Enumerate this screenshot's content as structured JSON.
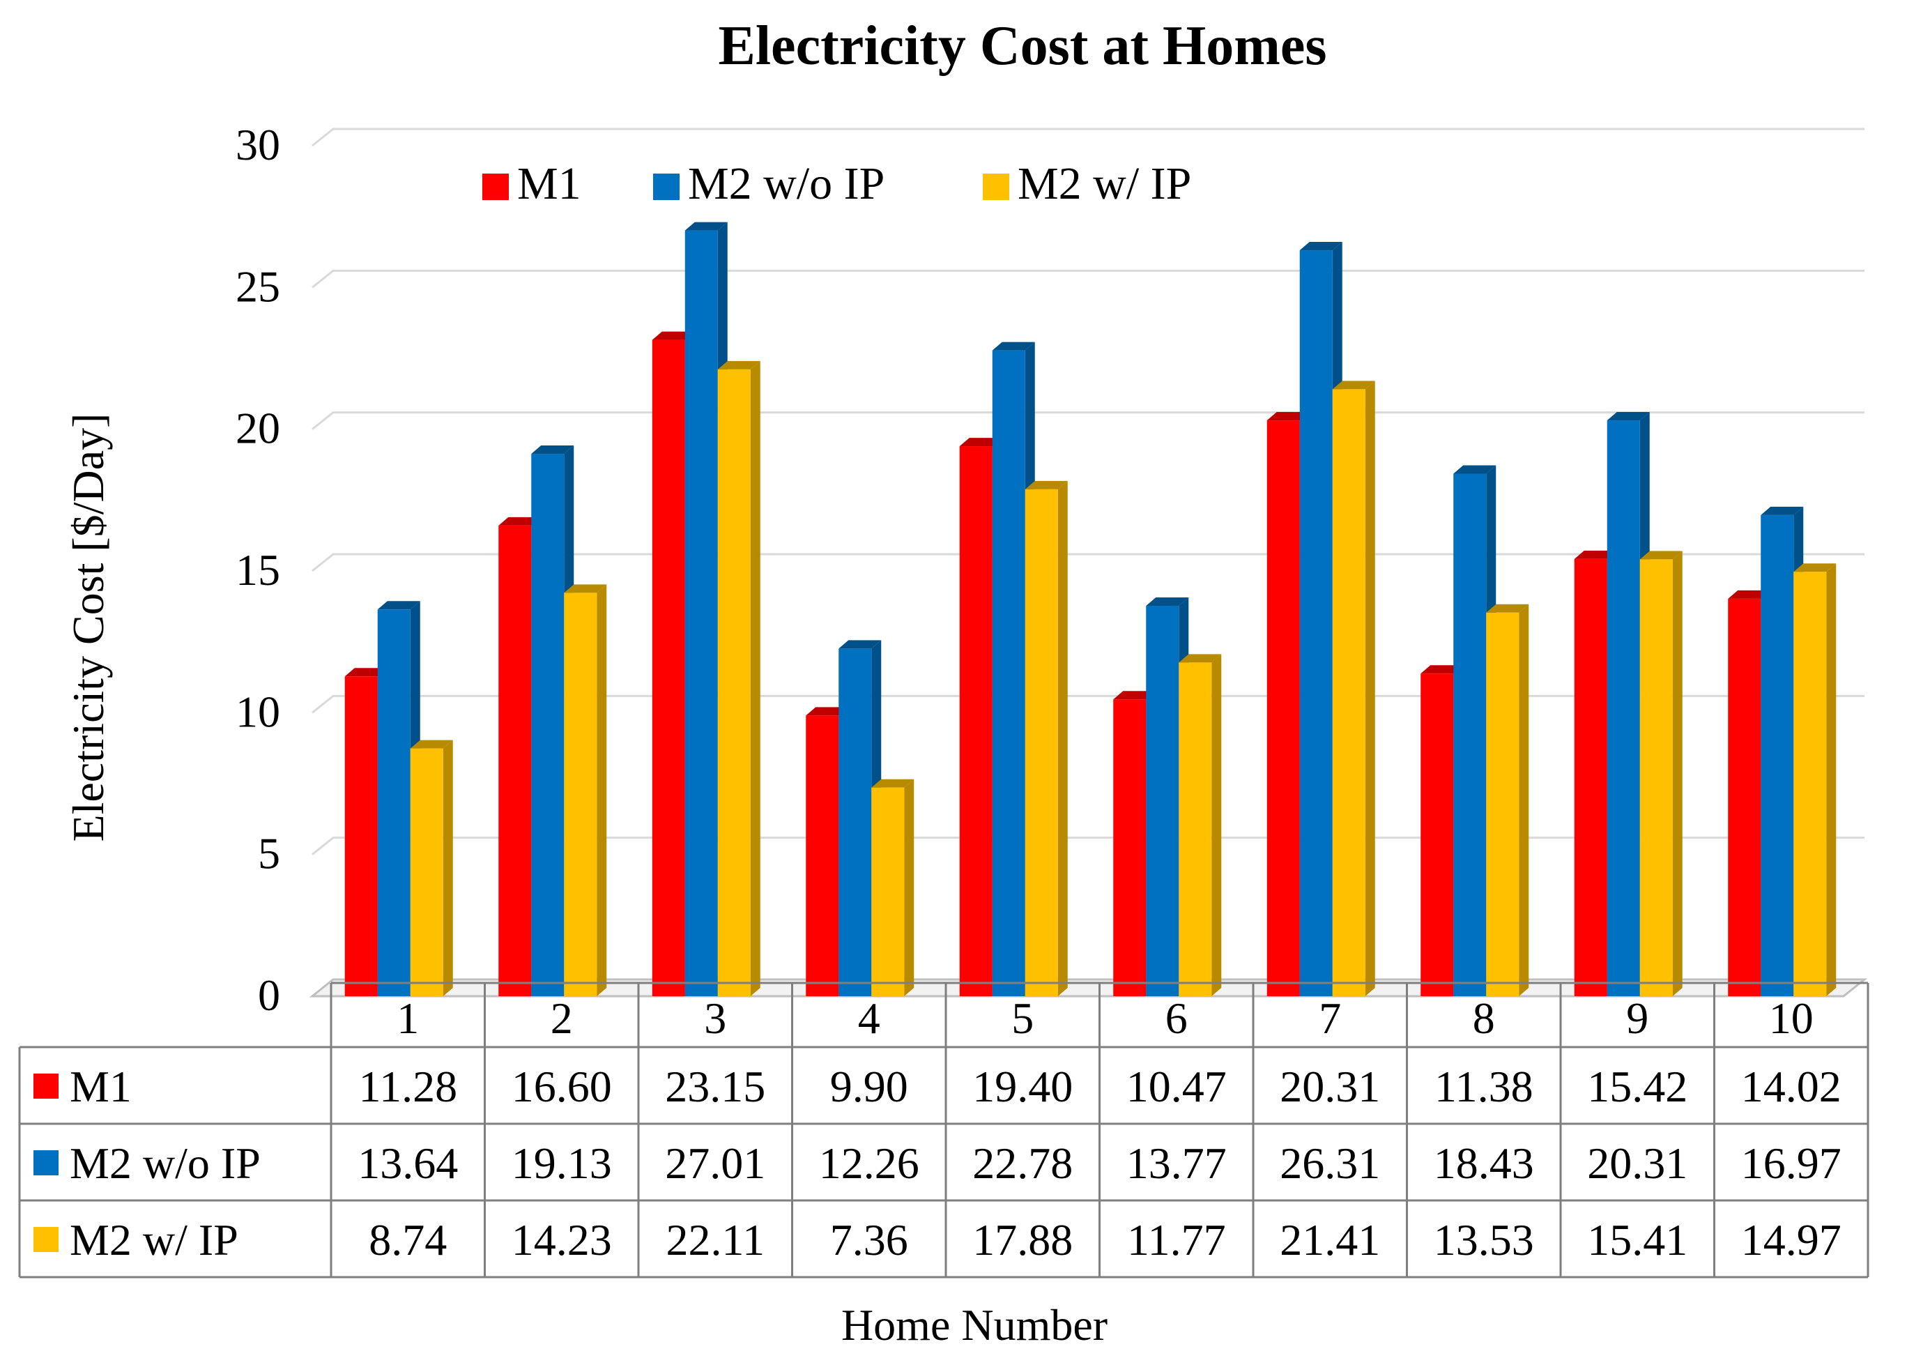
{
  "chart_data": {
    "type": "bar",
    "title": "Electricity  Cost at Homes",
    "xlabel": "Home Number",
    "ylabel": "Electricity Cost [$/Day]",
    "ylim": [
      0,
      30
    ],
    "yticks": [
      0,
      5,
      10,
      15,
      20,
      25,
      30
    ],
    "grid": true,
    "legend": "top",
    "categories": [
      "1",
      "2",
      "3",
      "4",
      "5",
      "6",
      "7",
      "8",
      "9",
      "10"
    ],
    "series": [
      {
        "name": "M1",
        "color": "#ff0000",
        "side": "#c00000",
        "values": [
          11.28,
          16.6,
          23.15,
          9.9,
          19.4,
          10.47,
          20.31,
          11.38,
          15.42,
          14.02
        ],
        "labels": [
          "11.28",
          "16.60",
          "23.15",
          "9.90",
          "19.40",
          "10.47",
          "20.31",
          "11.38",
          "15.42",
          "14.02"
        ]
      },
      {
        "name": "M2 w/o IP",
        "color": "#0070c0",
        "side": "#00508a",
        "values": [
          13.64,
          19.13,
          27.01,
          12.26,
          22.78,
          13.77,
          26.31,
          18.43,
          20.31,
          16.97
        ],
        "labels": [
          "13.64",
          "19.13",
          "27.01",
          "12.26",
          "22.78",
          "13.77",
          "26.31",
          "18.43",
          "20.31",
          "16.97"
        ]
      },
      {
        "name": "M2 w/ IP",
        "color": "#ffc000",
        "side": "#b88a00",
        "values": [
          8.74,
          14.23,
          22.11,
          7.36,
          17.88,
          11.77,
          21.41,
          13.53,
          15.41,
          14.97
        ],
        "labels": [
          "8.74",
          "14.23",
          "22.11",
          "7.36",
          "17.88",
          "11.77",
          "21.41",
          "13.53",
          "15.41",
          "14.97"
        ]
      }
    ]
  }
}
